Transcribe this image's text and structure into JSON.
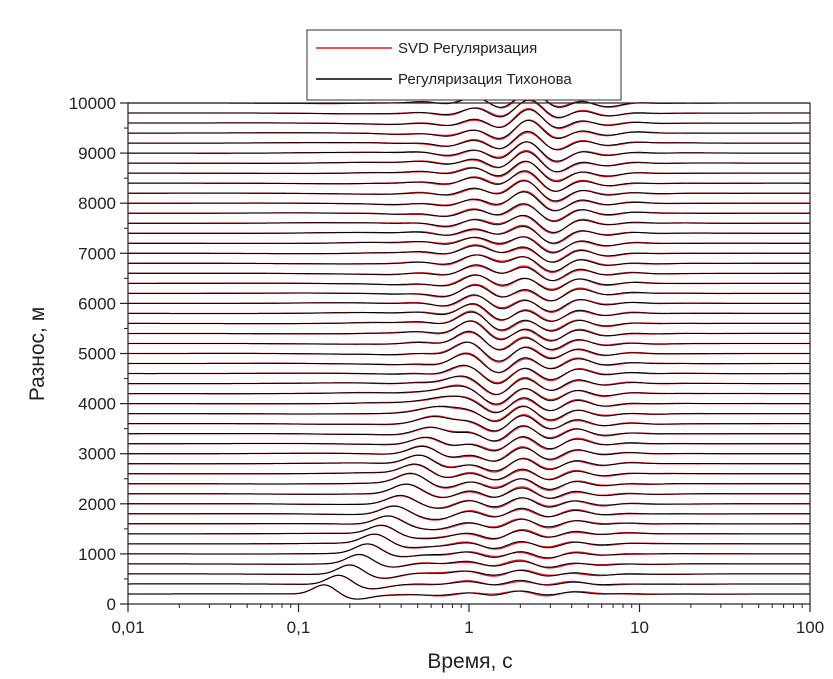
{
  "chart_data": {
    "type": "line",
    "xlabel": "Время, с",
    "ylabel": "Разнос, м",
    "x_scale": "log",
    "xlim": [
      0.01,
      100
    ],
    "ylim": [
      0,
      10000
    ],
    "x_ticks": [
      {
        "value": 0.01,
        "label": "0,01"
      },
      {
        "value": 0.1,
        "label": "0,1"
      },
      {
        "value": 1,
        "label": "1"
      },
      {
        "value": 10,
        "label": "10"
      },
      {
        "value": 100,
        "label": "100"
      }
    ],
    "y_ticks": [
      {
        "value": 0,
        "label": "0"
      },
      {
        "value": 1000,
        "label": "1000"
      },
      {
        "value": 2000,
        "label": "2000"
      },
      {
        "value": 3000,
        "label": "3000"
      },
      {
        "value": 4000,
        "label": "4000"
      },
      {
        "value": 5000,
        "label": "5000"
      },
      {
        "value": 6000,
        "label": "6000"
      },
      {
        "value": 7000,
        "label": "7000"
      },
      {
        "value": 8000,
        "label": "8000"
      },
      {
        "value": 9000,
        "label": "9000"
      },
      {
        "value": 10000,
        "label": "10000"
      }
    ],
    "offsets": {
      "start": 200,
      "end": 10000,
      "step": 200
    },
    "grid": false,
    "legend_position": "top-center",
    "series": [
      {
        "name": "SVD Регуляризация",
        "color": "#e8141e"
      },
      {
        "name": "Регуляризация Тихонова",
        "color": "#000000"
      }
    ]
  }
}
